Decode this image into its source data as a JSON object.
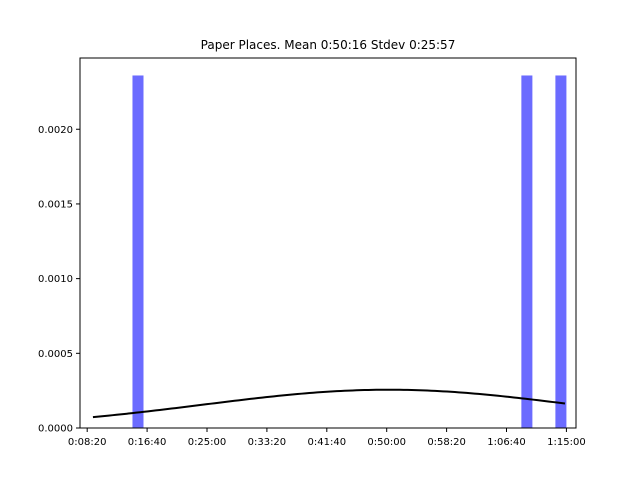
{
  "chart_data": {
    "type": "bar",
    "title": "Paper Places. Mean 0:50:16 Stdev 0:25:57",
    "xlabel": "",
    "ylabel": "",
    "x_unit": "seconds",
    "xlim": [
      440,
      4580
    ],
    "ylim": [
      0,
      0.002477
    ],
    "x_ticks": [
      {
        "value": 500,
        "label": "0:08:20"
      },
      {
        "value": 1000,
        "label": "0:16:40"
      },
      {
        "value": 1500,
        "label": "0:25:00"
      },
      {
        "value": 2000,
        "label": "0:33:20"
      },
      {
        "value": 2500,
        "label": "0:41:40"
      },
      {
        "value": 3000,
        "label": "0:50:00"
      },
      {
        "value": 3500,
        "label": "0:58:20"
      },
      {
        "value": 4000,
        "label": "1:06:40"
      },
      {
        "value": 4500,
        "label": "1:15:00"
      }
    ],
    "y_ticks": [
      {
        "value": 0,
        "label": "0.0000"
      },
      {
        "value": 0.0005,
        "label": "0.0005"
      },
      {
        "value": 0.001,
        "label": "0.0010"
      },
      {
        "value": 0.0015,
        "label": "0.0015"
      },
      {
        "value": 0.002,
        "label": "0.0020"
      }
    ],
    "bars": [
      {
        "x_start": 878,
        "x_end": 970,
        "value": 0.00236
      },
      {
        "x_start": 4124,
        "x_end": 4216,
        "value": 0.00236
      },
      {
        "x_start": 4408,
        "x_end": 4500,
        "value": 0.00236
      }
    ],
    "bar_color": "#6b6bff",
    "curve": {
      "type": "normal-pdf",
      "mean": 3016,
      "stdev": 1557,
      "x_range": [
        548,
        4488
      ],
      "color": "#000000"
    },
    "grid": false
  }
}
